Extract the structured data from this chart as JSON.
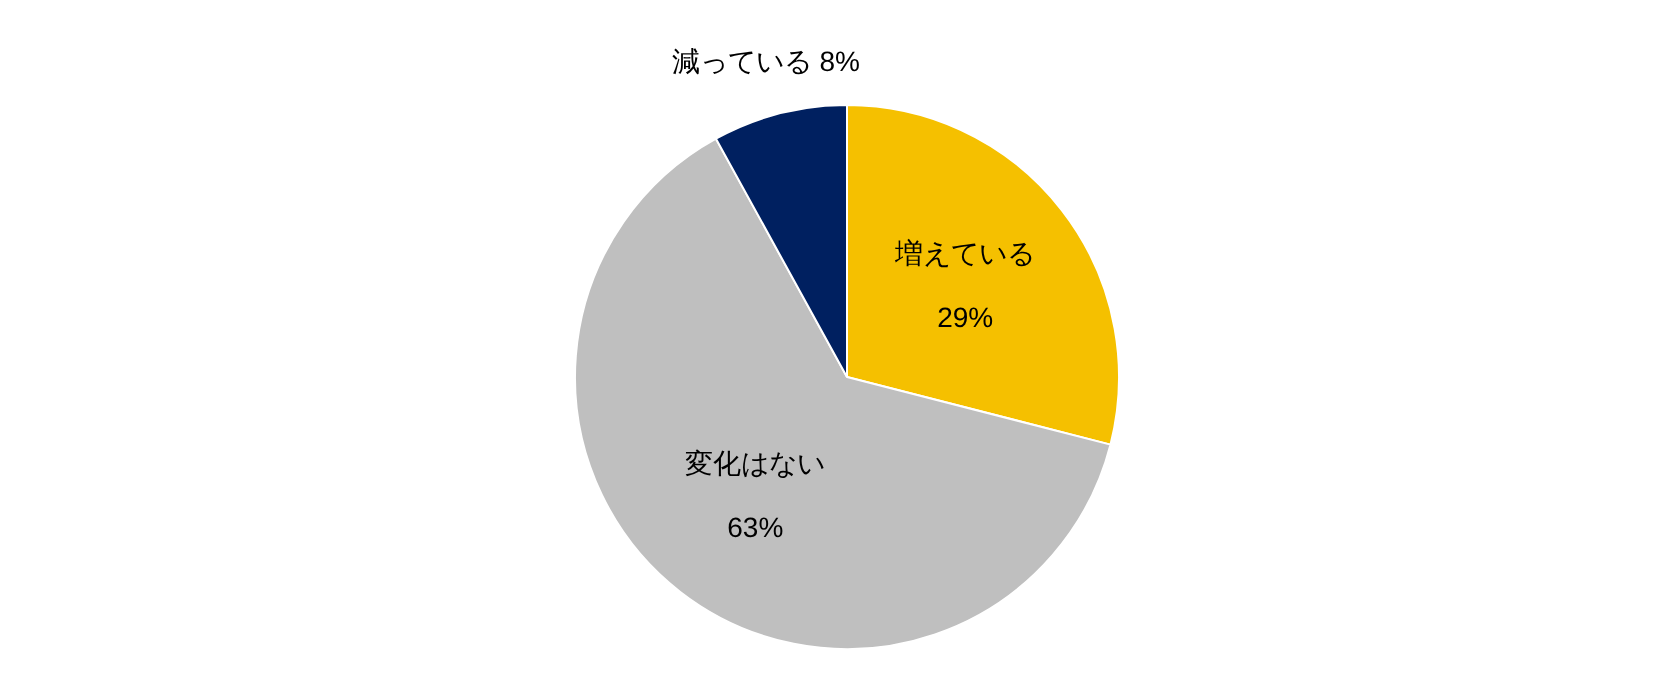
{
  "chart_data": {
    "type": "pie",
    "categories": [
      "増えている",
      "変化はない",
      "減っている"
    ],
    "values": [
      29,
      63,
      8
    ],
    "colors": [
      "#f5c000",
      "#bfbfbf",
      "#002060"
    ],
    "value_labels": [
      "29%",
      "63%",
      "8%"
    ]
  }
}
